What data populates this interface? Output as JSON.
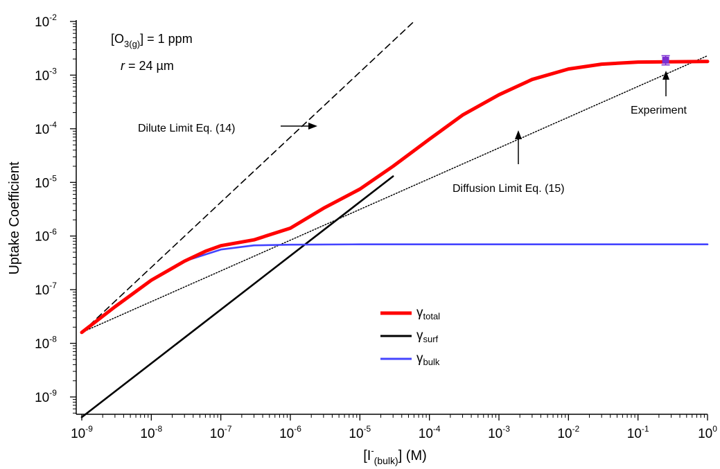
{
  "chart_data": {
    "type": "line",
    "x_scale": "log",
    "y_scale": "log",
    "xlim": [
      1e-09,
      1
    ],
    "ylim": [
      1e-10,
      0.01
    ],
    "xlabel": {
      "pre": "[I",
      "sup": "-",
      "sub": "(bulk)",
      "post": "] (M)"
    },
    "ylabel": "Uptake Coefficient",
    "x_ticks": [
      {
        "base": "10",
        "exp": "-9"
      },
      {
        "base": "10",
        "exp": "-8"
      },
      {
        "base": "10",
        "exp": "-7"
      },
      {
        "base": "10",
        "exp": "-6"
      },
      {
        "base": "10",
        "exp": "-5"
      },
      {
        "base": "10",
        "exp": "-4"
      },
      {
        "base": "10",
        "exp": "-3"
      },
      {
        "base": "10",
        "exp": "-2"
      },
      {
        "base": "10",
        "exp": "-1"
      },
      {
        "base": "10",
        "exp": "0"
      }
    ],
    "y_ticks": [
      {
        "base": "10",
        "exp": "-9"
      },
      {
        "base": "10",
        "exp": "-8"
      },
      {
        "base": "10",
        "exp": "-7"
      },
      {
        "base": "10",
        "exp": "-6"
      },
      {
        "base": "10",
        "exp": "-5"
      },
      {
        "base": "10",
        "exp": "-4"
      },
      {
        "base": "10",
        "exp": "-3"
      },
      {
        "base": "10",
        "exp": "-2"
      }
    ],
    "conditions": [
      {
        "pre": "[O",
        "sub": "3(g)",
        "post": "] = 1 ppm"
      },
      {
        "italic": "r",
        "post": " = 24 µm"
      }
    ],
    "series": [
      {
        "name": "γ_total",
        "legend": {
          "main": "γ",
          "sub": "total"
        },
        "color": "#ff0000",
        "style": "solid",
        "x": [
          1e-09,
          3e-09,
          1e-08,
          3e-08,
          6e-08,
          1e-07,
          3e-07,
          1e-06,
          3e-06,
          1e-05,
          3e-05,
          0.0001,
          0.0003,
          0.001,
          0.003,
          0.01,
          0.03,
          0.1,
          1
        ],
        "y": [
          1.6e-08,
          4.8e-08,
          1.5e-07,
          3.4e-07,
          5.2e-07,
          6.6e-07,
          8.5e-07,
          1.4e-06,
          3.3e-06,
          7.5e-06,
          2e-05,
          6.4e-05,
          0.00018,
          0.00043,
          0.00083,
          0.0013,
          0.0016,
          0.00175,
          0.0018
        ]
      },
      {
        "name": "γ_surf",
        "legend": {
          "main": "γ",
          "sub": "surf"
        },
        "color": "#000000",
        "style": "solid",
        "x": [
          1e-09,
          3e-05
        ],
        "y": [
          4.2e-10,
          1.3e-05
        ]
      },
      {
        "name": "γ_bulk",
        "legend": {
          "main": "γ",
          "sub": "bulk"
        },
        "color": "#4444ff",
        "style": "solid",
        "x": [
          1e-09,
          1e-08,
          3e-08,
          1e-07,
          3e-07,
          1e-06,
          1e-05,
          1
        ],
        "y": [
          1.6e-08,
          1.5e-07,
          3.4e-07,
          5.6e-07,
          6.7e-07,
          6.9e-07,
          7e-07,
          7e-07
        ]
      },
      {
        "name": "Dilute Limit Eq. (14)",
        "color": "#000000",
        "style": "dashed",
        "x": [
          1e-09,
          6e-05
        ],
        "y": [
          1.6e-08,
          0.01
        ]
      },
      {
        "name": "Diffusion Limit Eq. (15)",
        "color": "#000000",
        "style": "dotted",
        "x": [
          1e-09,
          1
        ],
        "y": [
          1.6e-08,
          0.0023
        ]
      }
    ],
    "experiment": {
      "x": 0.25,
      "y": 0.0019,
      "yerr_low": 0.00155,
      "yerr_high": 0.0023,
      "color": "#7b2fd0"
    },
    "annotations": {
      "dilute": "Dilute Limit Eq. (14)",
      "diffusion": "Diffusion Limit Eq. (15)",
      "experiment": "Experiment"
    },
    "legend_position": "lower-center"
  }
}
